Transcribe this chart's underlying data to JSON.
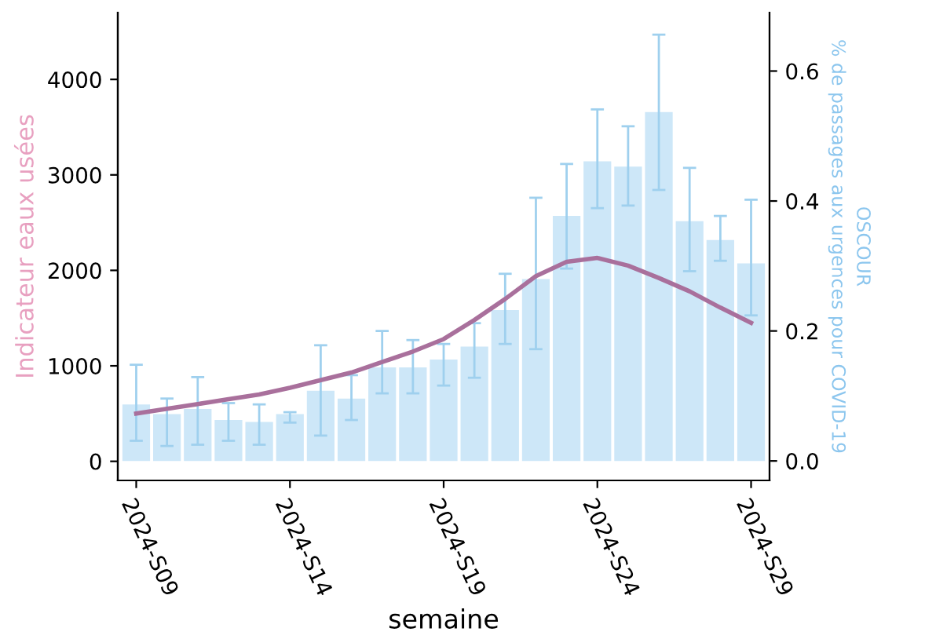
{
  "chart_data": {
    "type": "bar",
    "xlabel": "semaine",
    "ylabel": "Indicateur eaux usées",
    "y2label": "OSCOUR\n% de passages aux urgences pour COVID-19",
    "categories": [
      "2024-S09",
      null,
      null,
      null,
      null,
      "2024-S14",
      null,
      null,
      null,
      null,
      "2024-S19",
      null,
      null,
      null,
      null,
      "2024-S24",
      null,
      null,
      null,
      null,
      "2024-S29"
    ],
    "series": [
      {
        "axis": "y2",
        "color": "#cde7f8",
        "values": [
          0.087,
          0.072,
          0.08,
          0.063,
          0.06,
          0.072,
          0.108,
          0.096,
          0.144,
          0.144,
          0.156,
          0.176,
          0.232,
          0.28,
          0.377,
          0.461,
          0.453,
          0.537,
          0.369,
          0.34,
          0.304
        ],
        "errors": [
          [
            0.031,
            0.148
          ],
          [
            0.023,
            0.096
          ],
          [
            0.025,
            0.129
          ],
          [
            0.031,
            0.089
          ],
          [
            0.025,
            0.087
          ],
          [
            0.059,
            0.075
          ],
          [
            0.039,
            0.178
          ],
          [
            0.063,
            0.132
          ],
          [
            0.104,
            0.2
          ],
          [
            0.104,
            0.186
          ],
          [
            0.116,
            0.18
          ],
          [
            0.128,
            0.212
          ],
          [
            0.18,
            0.288
          ],
          [
            0.172,
            0.405
          ],
          [
            0.296,
            0.457
          ],
          [
            0.389,
            0.541
          ],
          [
            0.393,
            0.515
          ],
          [
            0.417,
            0.656
          ],
          [
            0.292,
            0.451
          ],
          [
            0.308,
            0.377
          ],
          [
            0.224,
            0.402
          ]
        ]
      },
      {
        "type": "line",
        "axis": "y",
        "color": "#a9709c",
        "values": [
          500,
          550,
          600,
          650,
          700,
          770,
          850,
          930,
          1040,
          1150,
          1280,
          1480,
          1700,
          1940,
          2090,
          2130,
          2050,
          1920,
          1780,
          1610,
          1450
        ]
      }
    ],
    "ylim": [
      -200,
      4700
    ],
    "yticks": [
      0,
      1000,
      2000,
      3000,
      4000
    ],
    "y2lim": [
      -0.03,
      0.69
    ],
    "y2ticks": [
      {
        "value": 0,
        "label": "0.0"
      },
      {
        "value": 0.2,
        "label": "0.2"
      },
      {
        "value": 0.4,
        "label": "0.4"
      },
      {
        "value": 0.6,
        "label": "0.6"
      }
    ],
    "grid": false,
    "legend": false
  }
}
